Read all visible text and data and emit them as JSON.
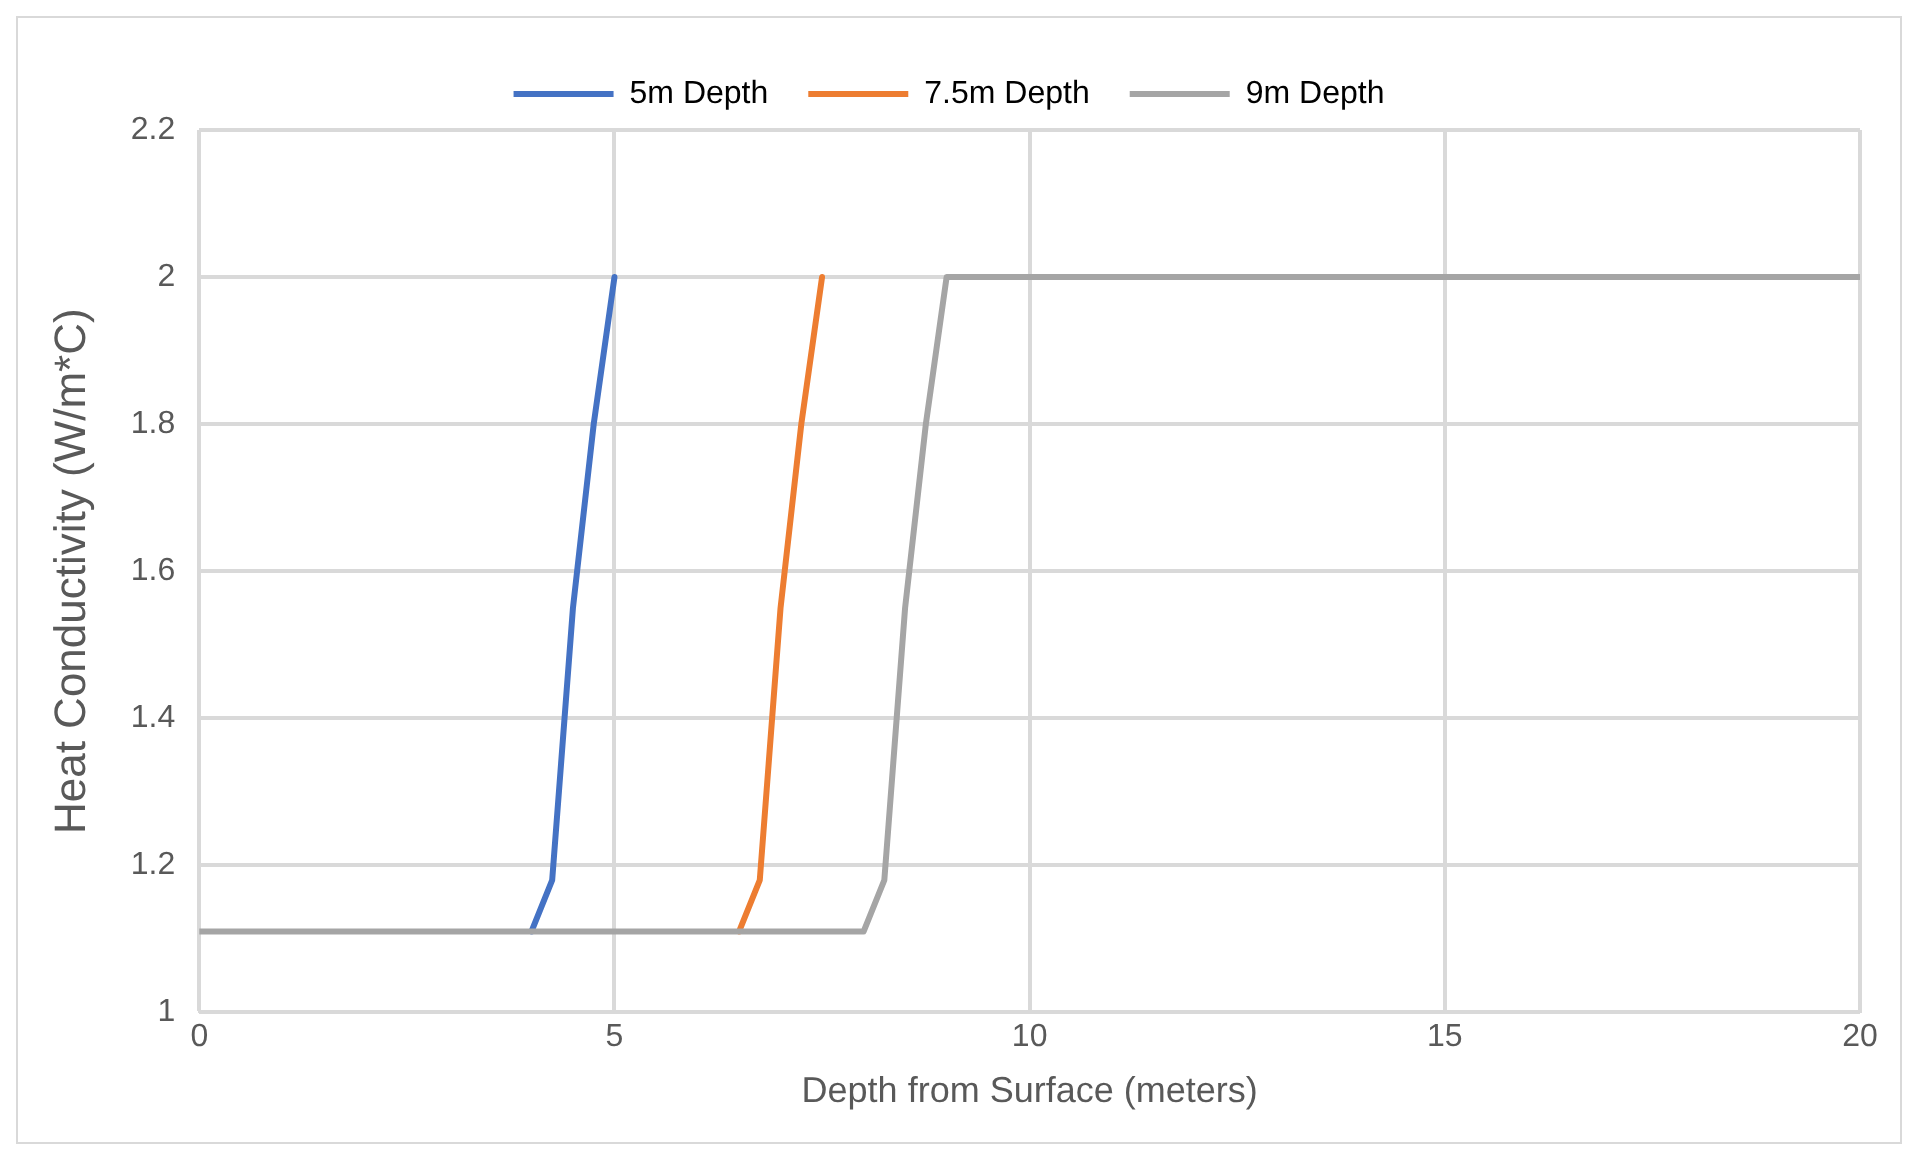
{
  "chart_data": {
    "type": "line",
    "xlabel": "Depth from Surface (meters)",
    "ylabel": "Heat Conductivity (W/m*C)",
    "xlim": [
      0,
      20
    ],
    "xticks": [
      0,
      5,
      10,
      15,
      20
    ],
    "ylim": [
      1,
      2.2
    ],
    "yticks": [
      1,
      1.2,
      1.4,
      1.6,
      1.8,
      2,
      2.2
    ],
    "grid": true,
    "legend": "top",
    "marker": "none",
    "line_style": "solid",
    "series": [
      {
        "name": "5m Depth",
        "color": "#4472c4",
        "x": [
          4,
          4.25,
          4.5,
          4.75,
          5
        ],
        "values": [
          1.11,
          1.18,
          1.55,
          1.8,
          2
        ]
      },
      {
        "name": "7.5m Depth",
        "color": "#ed7d31",
        "x": [
          6.5,
          6.75,
          7,
          7.25,
          7.5
        ],
        "values": [
          1.11,
          1.18,
          1.55,
          1.8,
          2
        ]
      },
      {
        "name": "9m Depth",
        "color": "#a5a5a5",
        "x": [
          0,
          8,
          8.25,
          8.5,
          8.75,
          9,
          20
        ],
        "values": [
          1.11,
          1.11,
          1.18,
          1.55,
          1.8,
          2,
          2
        ]
      }
    ]
  }
}
